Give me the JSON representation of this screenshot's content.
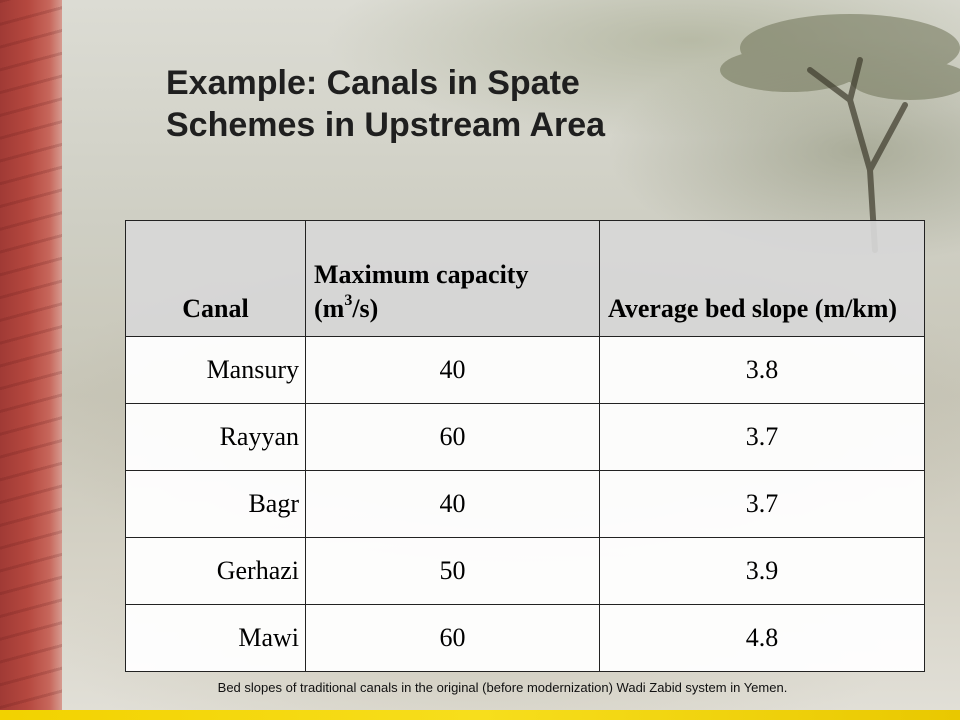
{
  "slide": {
    "title_line1": "Example: Canals in Spate",
    "title_line2": "Schemes in Upstream Area",
    "table": {
      "headers": {
        "canal": "Canal",
        "capacity_prefix": "Maximum capacity (m",
        "capacity_exponent": "3",
        "capacity_suffix": "/s)",
        "slope": "Average bed slope (m/km)"
      },
      "rows": [
        {
          "canal": "Mansury",
          "capacity": "40",
          "slope": "3.8"
        },
        {
          "canal": "Rayyan",
          "capacity": "60",
          "slope": "3.7"
        },
        {
          "canal": "Bagr",
          "capacity": "40",
          "slope": "3.7"
        },
        {
          "canal": "Gerhazi",
          "capacity": "50",
          "slope": "3.9"
        },
        {
          "canal": "Mawi",
          "capacity": "60",
          "slope": "4.8"
        }
      ]
    },
    "caption": "Bed slopes of traditional canals in the original (before modernization) Wadi Zabid system in Yemen."
  },
  "colors": {
    "left_band": "#b5483f",
    "bottom_bar": "#f2d200",
    "title_text": "#1f1f1f"
  }
}
